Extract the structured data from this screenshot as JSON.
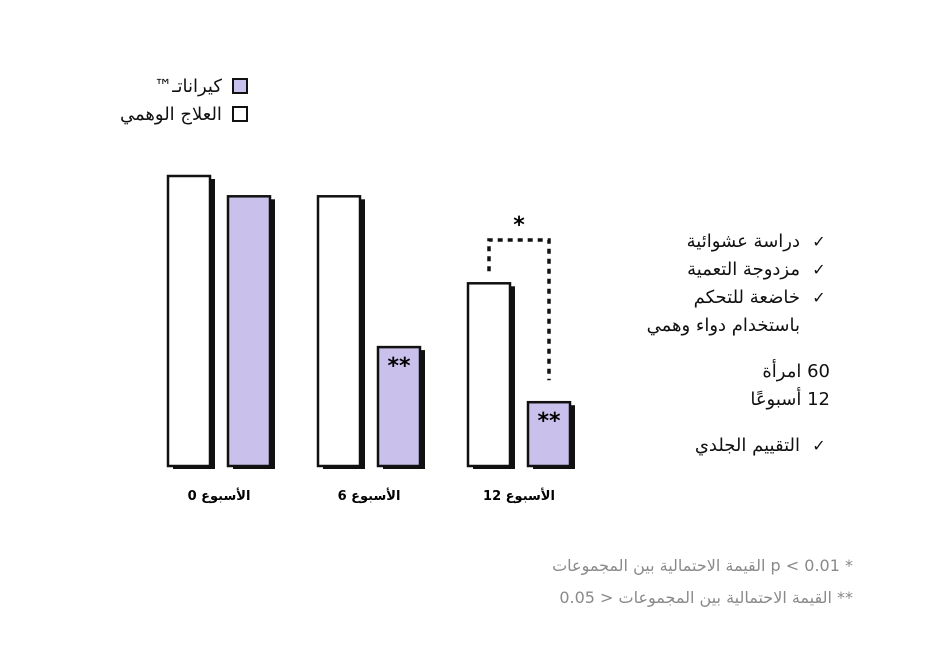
{
  "legend": [
    {
      "label": "كيراناتـ™",
      "color": "#c9c0ec"
    },
    {
      "label": "العلاج الوهمي",
      "color": "#ffffff"
    }
  ],
  "chart_data": {
    "type": "bar",
    "categories": [
      "الأسبوع 0",
      "الأسبوع 6",
      "الأسبوع 12"
    ],
    "series": [
      {
        "name": "العلاج الوهمي",
        "values": [
          100,
          93,
          63
        ],
        "color": "#ffffff"
      },
      {
        "name": "كيراناتـ™",
        "values": [
          93,
          41,
          22
        ],
        "color": "#c9c0ec"
      }
    ],
    "ylim": [
      0,
      100
    ],
    "bar_labels": [
      {
        "category": 1,
        "series": 1,
        "text": "**"
      },
      {
        "category": 2,
        "series": 1,
        "text": "**"
      }
    ],
    "bracket": {
      "category": 2,
      "text": "*"
    }
  },
  "bullets": [
    {
      "text": "دراسة عشوائية"
    },
    {
      "text": "مزدوجة التعمية"
    },
    {
      "text": "خاضعة للتحكم\nباستخدام دواء وهمي"
    }
  ],
  "stats": "60 امرأة\n12 أسبوعًا",
  "assessment": {
    "text": "التقييم الجلدي"
  },
  "footnotes": [
    "* p < 0.01 القيمة الاحتمالية بين المجموعات",
    "** القيمة الاحتمالية بين المجموعات < 0.05"
  ]
}
